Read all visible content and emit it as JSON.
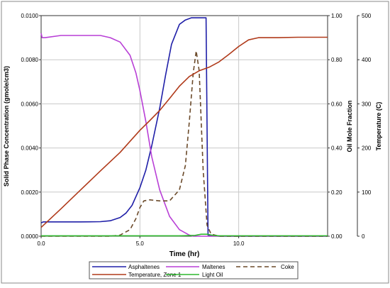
{
  "chart_data": {
    "type": "line",
    "xlabel": "Time (hr)",
    "ylabel_left": "Solid Phase Concentration (gmole/cm3)",
    "ylabel_mid": "Oil Mole Fraction",
    "ylabel_right": "Temperature (C)",
    "xlim": [
      0,
      14.5
    ],
    "ylim_left": [
      0,
      0.01
    ],
    "ylim_mid": [
      0,
      1.0
    ],
    "ylim_right": [
      0,
      500
    ],
    "x_ticks": [
      "0.0",
      "5.0",
      "10.0"
    ],
    "x_tick_values": [
      0,
      5,
      10
    ],
    "y_left_ticks": [
      "0.0000",
      "0.0020",
      "0.0040",
      "0.0060",
      "0.0080",
      "0.0100"
    ],
    "y_left_tick_values": [
      0,
      0.002,
      0.004,
      0.006,
      0.008,
      0.01
    ],
    "y_mid_ticks": [
      "0.00",
      "0.20",
      "0.40",
      "0.60",
      "0.80",
      "1.00"
    ],
    "y_mid_tick_values": [
      0,
      0.2,
      0.4,
      0.6,
      0.8,
      1.0
    ],
    "y_right_ticks": [
      "0",
      "100",
      "200",
      "300",
      "400",
      "500"
    ],
    "y_right_tick_values": [
      0,
      100,
      200,
      300,
      400,
      500
    ],
    "grid": true,
    "legend_position": "bottom",
    "series": [
      {
        "name": "Asphaltenes",
        "axis": "left",
        "color": "#1f1fa8",
        "dash": "",
        "x": [
          0,
          0.1,
          1,
          2,
          3,
          3.5,
          4,
          4.3,
          4.6,
          5,
          5.3,
          5.6,
          6,
          6.3,
          6.6,
          7,
          7.3,
          7.6,
          8,
          8.2,
          8.3,
          8.35,
          8.45,
          9,
          14.5
        ],
        "y": [
          0.0006,
          0.00065,
          0.00065,
          0.00065,
          0.00066,
          0.0007,
          0.00085,
          0.00105,
          0.0014,
          0.0022,
          0.003,
          0.0041,
          0.0058,
          0.0073,
          0.0087,
          0.0096,
          0.0098,
          0.0099,
          0.0099,
          0.0099,
          0.0099,
          0.0099,
          5e-05,
          0,
          0
        ]
      },
      {
        "name": "Maltenes",
        "axis": "left",
        "color": "#b83fd6",
        "dash": "",
        "x": [
          0,
          0.05,
          0.2,
          1,
          2,
          3,
          3.5,
          4,
          4.5,
          4.8,
          5,
          5.3,
          5.6,
          6,
          6.5,
          7,
          7.5,
          7.7,
          8,
          14.5
        ],
        "y": [
          0.0092,
          0.009,
          0.009,
          0.0091,
          0.0091,
          0.0091,
          0.009,
          0.0088,
          0.0082,
          0.0074,
          0.0066,
          0.0052,
          0.0036,
          0.0021,
          0.0009,
          0.0003,
          5e-05,
          0,
          0,
          0
        ]
      },
      {
        "name": "Coke",
        "axis": "left",
        "color": "#6b4a2a",
        "dash": "6 4",
        "x": [
          0,
          3.5,
          4,
          4.5,
          4.8,
          5,
          5.2,
          5.5,
          6,
          6.5,
          7,
          7.3,
          7.5,
          7.7,
          7.85,
          8,
          8.2,
          8.4,
          8.6,
          9,
          14.5
        ],
        "y": [
          0,
          0,
          5e-05,
          0.0003,
          0.0008,
          0.0013,
          0.0016,
          0.00165,
          0.0016,
          0.0016,
          0.0021,
          0.0032,
          0.0052,
          0.0074,
          0.0084,
          0.0075,
          0.003,
          0.0005,
          0.0001,
          0,
          0
        ]
      },
      {
        "name": "Temperature, Zone 1",
        "axis": "right",
        "color": "#b03a1a",
        "dash": "",
        "x": [
          0,
          1,
          2,
          3,
          4,
          5,
          5.5,
          6,
          6.5,
          7,
          7.5,
          8,
          8.5,
          9,
          9.5,
          10,
          10.5,
          11,
          12,
          13,
          14,
          14.5
        ],
        "y": [
          20,
          62,
          105,
          148,
          190,
          240,
          262,
          285,
          312,
          340,
          362,
          375,
          383,
          395,
          412,
          430,
          445,
          450,
          450,
          451,
          451,
          451
        ]
      },
      {
        "name": "Light Oil",
        "axis": "mid",
        "color": "#2eb82e",
        "dash": "",
        "x": [
          0,
          4,
          7,
          7.8,
          8.1,
          8.4,
          8.7,
          9,
          14.5
        ],
        "y": [
          0.002,
          0.002,
          0.002,
          0.004,
          0.009,
          0.009,
          0.004,
          0.002,
          0.002
        ]
      }
    ],
    "legend": [
      {
        "label": "Asphaltenes"
      },
      {
        "label": "Maltenes"
      },
      {
        "label": "Coke"
      },
      {
        "label": "Temperature, Zone 1"
      },
      {
        "label": "Light Oil"
      }
    ]
  }
}
